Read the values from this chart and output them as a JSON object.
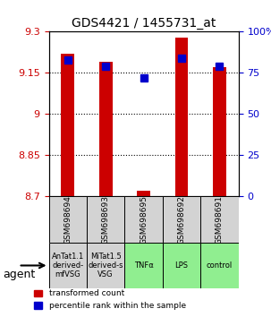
{
  "title": "GDS4421 / 1455731_at",
  "samples": [
    "GSM698694",
    "GSM698693",
    "GSM698695",
    "GSM698692",
    "GSM698691"
  ],
  "agents": [
    "AnTat1.1\nderived-\nmfVSG",
    "MiTat1.5\nderived-s\nVSG",
    "TNFα",
    "LPS",
    "control"
  ],
  "agent_colors": [
    "#d3d3d3",
    "#d3d3d3",
    "#90ee90",
    "#90ee90",
    "#90ee90"
  ],
  "red_values": [
    9.22,
    9.19,
    8.72,
    9.28,
    9.17
  ],
  "blue_values_pct": [
    83,
    79,
    72,
    84,
    79
  ],
  "ylim_left": [
    8.7,
    9.3
  ],
  "ylim_right": [
    0,
    100
  ],
  "yticks_left": [
    8.7,
    8.85,
    9.0,
    9.15,
    9.3
  ],
  "yticks_right": [
    0,
    25,
    50,
    75,
    100
  ],
  "ytick_labels_left": [
    "8.7",
    "8.85",
    "9",
    "9.15",
    "9.3"
  ],
  "ytick_labels_right": [
    "0",
    "25",
    "50",
    "75",
    "100%"
  ],
  "left_tick_color": "#cc0000",
  "right_tick_color": "#0000cc",
  "bar_bottom": 8.7,
  "blue_marker_size": 6,
  "red_bar_width": 0.35,
  "legend_red_label": "transformed count",
  "legend_blue_label": "percentile rank within the sample",
  "agent_label": "agent"
}
